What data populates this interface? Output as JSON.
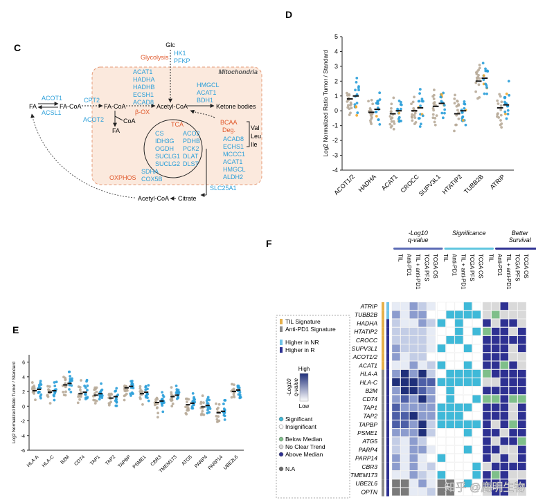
{
  "colors": {
    "blue": "#2b9fd9",
    "gray": "#b8ab99",
    "orange": "#f0a830",
    "red": "#e0582b",
    "navy": "#2e3192",
    "cyan": "#3fb9d8",
    "lightblue": "#6fc3e8",
    "green": "#7fbf8a",
    "tan": "#e6b04a"
  },
  "panel_c": {
    "letter": "C",
    "nodes": {
      "glc": "Glc",
      "hk": "HK1",
      "pfkp": "PFKP",
      "glycolysis": "Glycolysis",
      "mito": "Mitochondria",
      "fa": "FA",
      "facoa1": "FA-CoA",
      "facoa2": "FA-CoA",
      "acetylcoa": "Acetyl-CoA",
      "coa": "CoA",
      "ketone": "Ketone bodies",
      "fa2": "FA",
      "acetylcoa_bottom": "Acetyl-CoA",
      "citrate": "Citrate",
      "acot1": "ACOT1",
      "acsl1": "ACSL1",
      "cpt2": "CPT2",
      "acot2": "ACOT2",
      "box": "β-OX",
      "tca": "TCA",
      "oxphos": "OXPHOS",
      "bcaa": "BCAA",
      "deg": "Deg.",
      "val": "Val",
      "leu": "Leu",
      "ile": "Ile",
      "slc": "SLC25A1"
    },
    "beta_ox_genes": [
      "ACAT1",
      "HADHA",
      "HADHB",
      "ECSH1",
      "ACAD8"
    ],
    "ketone_genes": [
      "HMGCL",
      "ACAT1",
      "BDH1"
    ],
    "tca_genes_left": [
      "CS",
      "IDH3G",
      "OGDH",
      "SUCLG1",
      "SUCLG2"
    ],
    "tca_genes_right": [
      "ACO2",
      "PDHB",
      "PCK2",
      "DLAT",
      "DLST"
    ],
    "oxphos_genes": [
      "SDHA",
      "COX5B"
    ],
    "bcaa_genes": [
      "ACAD8",
      "ECHS1",
      "MCCC1",
      "ACAT1",
      "HMGCL",
      "ALDH2"
    ]
  },
  "panel_d": {
    "letter": "D",
    "ylabel": "Log2 Normalized Ratio Tumor / Standard",
    "yticks": [
      "5",
      "4",
      "3",
      "2",
      "1",
      "0",
      "-1",
      "-2",
      "-3",
      "-4"
    ],
    "categories": [
      "ACOT1/2",
      "HADHA",
      "ACAT1",
      "CROCC",
      "SUPV3L1",
      "HTATIP2",
      "TUBB2B",
      "ATRIP"
    ]
  },
  "panel_e": {
    "letter": "E",
    "ylabel": "Log2 Normalized Ratio Tumor / Standard",
    "yticks": [
      "6",
      "4",
      "2",
      "0",
      "-2",
      "-4",
      "-6"
    ],
    "categories": [
      "HLA-A",
      "HLA-C",
      "B2M",
      "CD74",
      "TAP1",
      "TAP2",
      "TAPBP",
      "PSME1",
      "CBR3",
      "TMEM173",
      "ATG5",
      "PARP4",
      "PARP14",
      "UBE2L6"
    ]
  },
  "panel_f": {
    "letter": "F",
    "groups": [
      "-Log10\nq-value",
      "Significance",
      "Better\nSurvival"
    ],
    "columns": [
      "TIL",
      "Anti-PD1",
      "TIL + anti-PD1",
      "TCGA PFS",
      "TCGA OS",
      "TIL",
      "Anti-PD1",
      "TIL + anti-PD1",
      "TCGA PFS",
      "TCGA OS",
      "TIL",
      "Anti-PD1",
      "TIL + anti-PD1",
      "TCGA PFS",
      "TCGA OS"
    ],
    "rows": [
      "ATRIP",
      "TUBB2B",
      "HADHA",
      "HTATIP2",
      "CROCC",
      "SUPV3L1",
      "ACOT1/2",
      "ACAT1",
      "HLA-A",
      "HLA-C",
      "B2M",
      "CD74",
      "TAP1",
      "TAP2",
      "TAPBP",
      "PSME1",
      "ATG5",
      "PARP4",
      "PARP14",
      "CBR3",
      "TMEM173",
      "UBE2L6",
      "OPTN"
    ],
    "legend": {
      "til_sig": "TIL Signature",
      "pd1_sig": "Anti-PD1 Signature",
      "higher_nr": "Higher in NR",
      "higher_r": "Higher in R",
      "scale_label": "-Log10\nq-value",
      "high": "High",
      "low": "Low",
      "significant": "Significant",
      "insignificant": "Insignificant",
      "below": "Below Median",
      "noclear": "No Clear Trend",
      "above": "Above Median",
      "na": "N.A"
    }
  },
  "watermark": "知乎 @鹿明生物"
}
